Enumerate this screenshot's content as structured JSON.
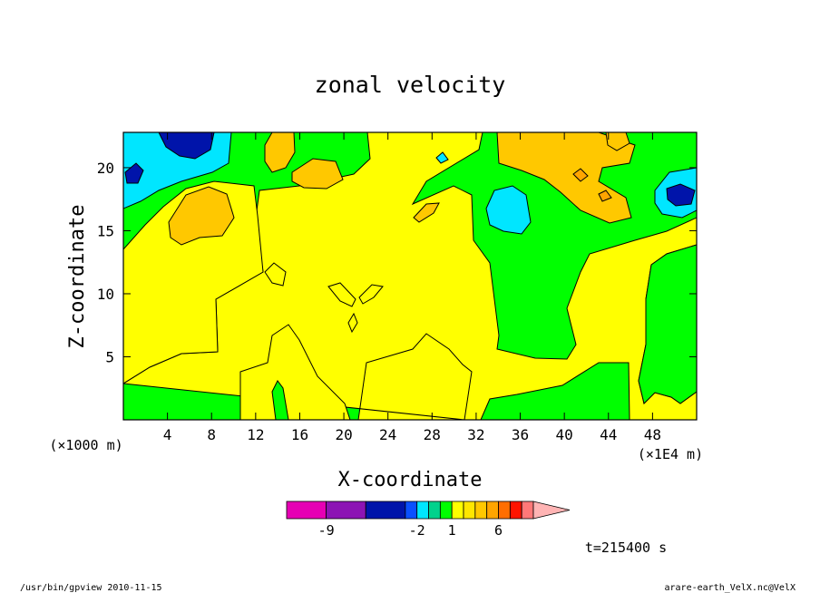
{
  "chart_data": {
    "type": "heatmap",
    "title": "zonal velocity",
    "xlabel": "X-coordinate",
    "ylabel": "Z-coordinate",
    "x_unit_left": "(×1000 m)",
    "x_unit_right": "(×1E4 m)",
    "xlim": [
      0,
      52
    ],
    "ylim": [
      0,
      22.8
    ],
    "xticks": [
      "4",
      "8",
      "12",
      "16",
      "20",
      "24",
      "28",
      "32",
      "36",
      "40",
      "44",
      "48"
    ],
    "yticks": [
      "5",
      "10",
      "15",
      "20"
    ],
    "xtick_values": [
      4,
      8,
      12,
      16,
      20,
      24,
      28,
      32,
      36,
      40,
      44,
      48
    ],
    "ytick_values": [
      5,
      10,
      15,
      20
    ],
    "colorbar": {
      "levels": [
        -12,
        -9,
        -6,
        -3,
        -2,
        -1,
        0,
        1,
        2,
        3,
        4,
        6,
        8,
        10,
        12
      ],
      "colors": [
        "#e600b4",
        "#8c14b4",
        "#0014aa",
        "#0a50ff",
        "#00e6ff",
        "#00d28c",
        "#00ff00",
        "#ffff00",
        "#ffe600",
        "#ffc800",
        "#ffa500",
        "#ff6e00",
        "#ff1400",
        "#ff7878",
        "#ffb4b4"
      ],
      "labels": [
        "-9",
        "-2",
        "1",
        "6"
      ],
      "label_values": [
        -9,
        -2,
        1,
        6
      ]
    },
    "time_label": "t=215400 s",
    "regions": [
      {
        "level": "0 to 1",
        "color": "#00ff00",
        "x": [
          0,
          52
        ],
        "z": [
          0,
          22.8
        ]
      },
      {
        "level": "1 to 2",
        "color": "#ffff00",
        "x": [
          0,
          9
        ],
        "z": [
          5,
          15
        ]
      },
      {
        "level": "1 to 2",
        "color": "#ffff00",
        "x": [
          9,
          43
        ],
        "z": [
          0,
          23
        ]
      },
      {
        "level": "1 to 2",
        "color": "#ffff00",
        "x": [
          47,
          52
        ],
        "z": [
          0,
          12
        ]
      },
      {
        "level": "3 to 4",
        "color": "#ffc800",
        "x": [
          4,
          8.5
        ],
        "z": [
          14.5,
          19
        ]
      },
      {
        "level": "3 to 4",
        "color": "#ffc800",
        "x": [
          37,
          45
        ],
        "z": [
          17.5,
          22.8
        ]
      },
      {
        "level": "3 to 4",
        "color": "#ffc800",
        "x": [
          13,
          15
        ],
        "z": [
          21,
          22.8
        ]
      },
      {
        "level": "-2 to -1",
        "color": "#00e6ff",
        "x": [
          0,
          9
        ],
        "z": [
          18,
          22.8
        ]
      },
      {
        "level": "-2 to -1",
        "color": "#00e6ff",
        "x": [
          32.5,
          36.5
        ],
        "z": [
          14.5,
          18.5
        ]
      },
      {
        "level": "-2 to -1",
        "color": "#00e6ff",
        "x": [
          47,
          52
        ],
        "z": [
          16.5,
          20.5
        ]
      },
      {
        "level": "-6 to -3",
        "color": "#0014aa",
        "x": [
          3,
          7.5
        ],
        "z": [
          21,
          22.8
        ]
      },
      {
        "level": "-6 to -3",
        "color": "#0014aa",
        "x": [
          0,
          2
        ],
        "z": [
          18.5,
          20
        ]
      },
      {
        "level": "-6 to -3",
        "color": "#0014aa",
        "x": [
          49.5,
          52
        ],
        "z": [
          17.5,
          19
        ]
      }
    ]
  },
  "footer": {
    "left": "/usr/bin/gpview 2010-11-15",
    "right": "arare-earth_VelX.nc@VelX"
  }
}
